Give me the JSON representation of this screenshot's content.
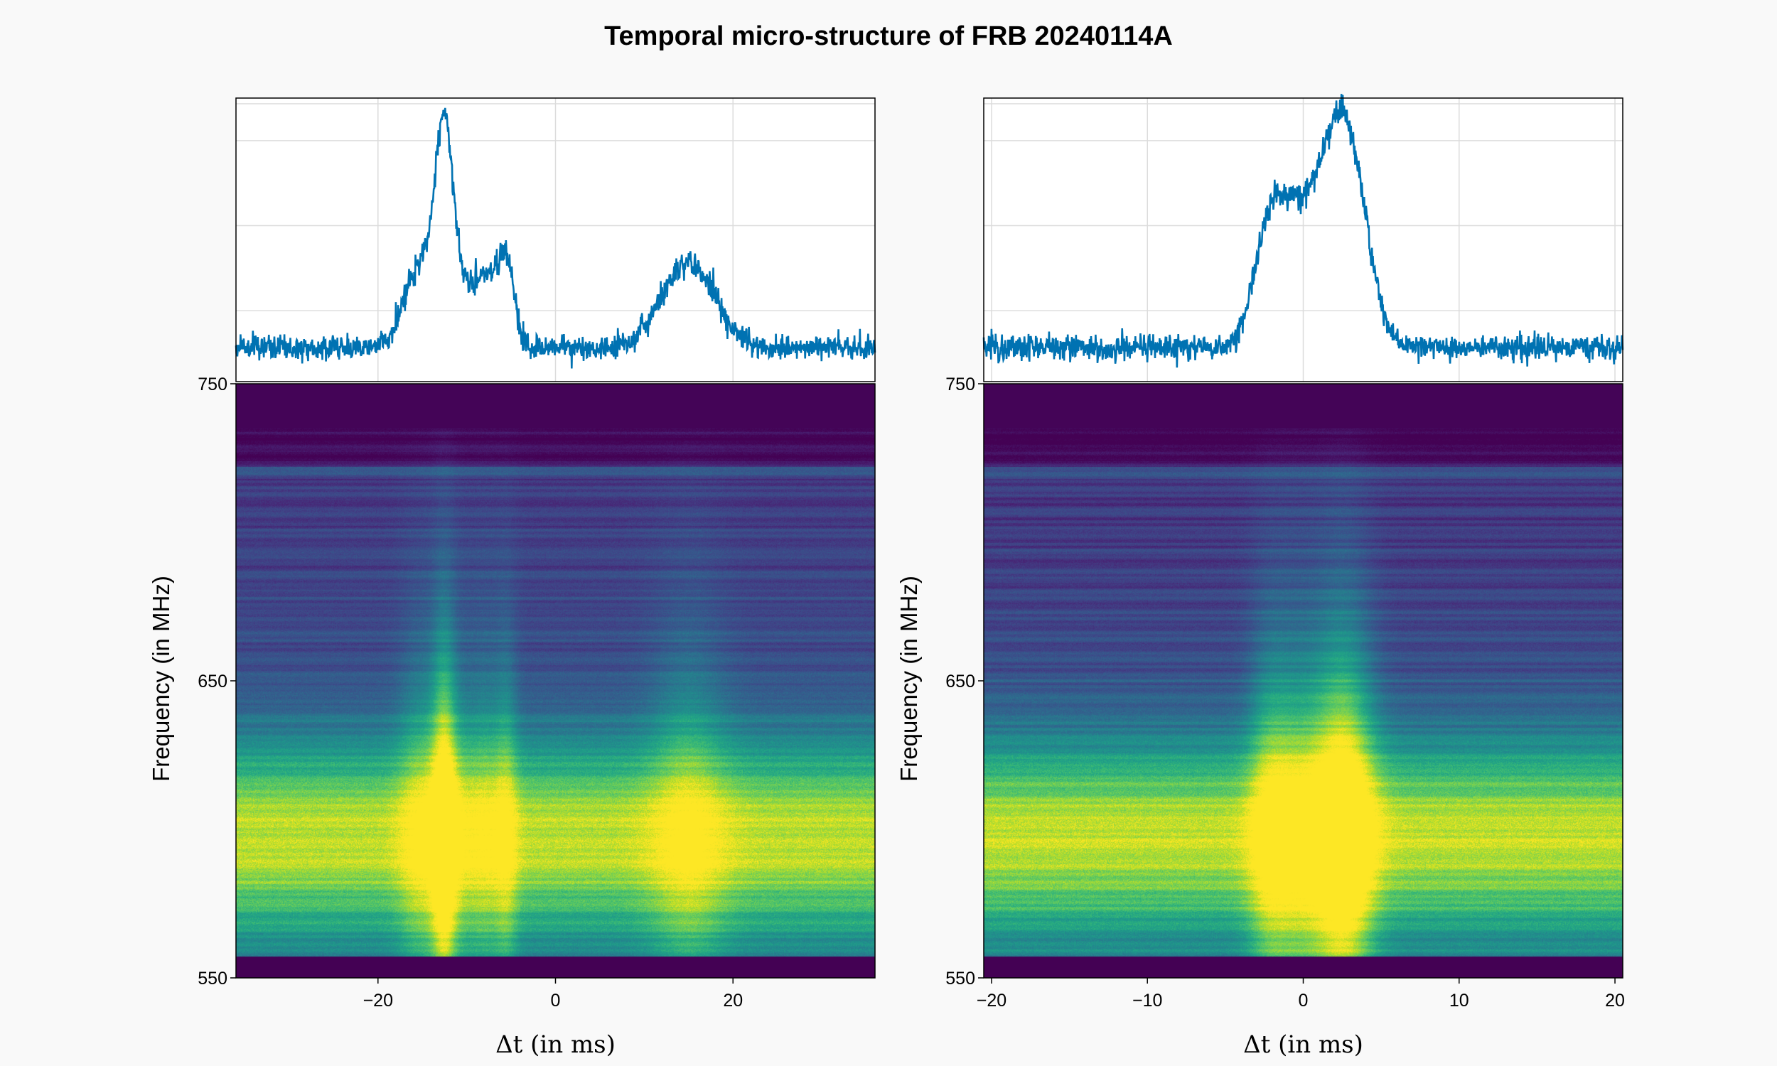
{
  "figure": {
    "title": "Temporal micro-structure of FRB 20240114A",
    "background": "#f9f9f9"
  },
  "chart_data": [
    {
      "type": "line",
      "panel": "left",
      "role": "time-profile",
      "x_range": [
        -36,
        36
      ],
      "x_ticks": [
        -20,
        0,
        20
      ],
      "grid": true,
      "line_color": "#0072b2",
      "components": [
        {
          "center": -12.5,
          "width": 1.0,
          "amp": 0.62
        },
        {
          "center": -14.2,
          "width": 1.6,
          "amp": 0.16
        },
        {
          "center": -16.0,
          "width": 1.5,
          "amp": 0.15
        },
        {
          "center": -10.5,
          "width": 1.0,
          "amp": 0.1
        },
        {
          "center": -8.0,
          "width": 1.5,
          "amp": 0.22
        },
        {
          "center": -5.5,
          "width": 0.9,
          "amp": 0.24
        },
        {
          "center": 15.0,
          "width": 3.0,
          "amp": 0.26
        }
      ],
      "baseline": 0.12,
      "peak": 1.0
    },
    {
      "type": "heatmap",
      "panel": "left",
      "role": "dynamic-spectrum",
      "colormap": "viridis",
      "x_range": [
        -36,
        36
      ],
      "y_range": [
        550,
        750
      ],
      "x_ticks": [
        -20,
        0,
        20
      ],
      "y_ticks": [
        550,
        650,
        750
      ],
      "xlabel": "Δt (in ms)",
      "ylabel": "Frequency (in MHz)"
    },
    {
      "type": "line",
      "panel": "right",
      "role": "time-profile",
      "x_range": [
        -20.5,
        20.5
      ],
      "x_ticks": [
        -20,
        -10,
        0,
        10,
        20
      ],
      "grid": true,
      "line_color": "#0072b2",
      "components": [
        {
          "center": -1.2,
          "width": 1.3,
          "amp": 0.36
        },
        {
          "center": -2.5,
          "width": 0.8,
          "amp": 0.12
        },
        {
          "center": 2.3,
          "width": 1.2,
          "amp": 0.52
        },
        {
          "center": 3.6,
          "width": 1.1,
          "amp": 0.18
        },
        {
          "center": 0.6,
          "width": 0.9,
          "amp": 0.12
        }
      ],
      "baseline": 0.12,
      "peak": 1.0
    },
    {
      "type": "heatmap",
      "panel": "right",
      "role": "dynamic-spectrum",
      "colormap": "viridis",
      "x_range": [
        -20.5,
        20.5
      ],
      "y_range": [
        550,
        750
      ],
      "x_ticks": [
        -20,
        -10,
        0,
        10,
        20
      ],
      "y_ticks": [
        550,
        650,
        750
      ],
      "xlabel": "Δt (in ms)",
      "ylabel": "Frequency (in MHz)"
    }
  ]
}
